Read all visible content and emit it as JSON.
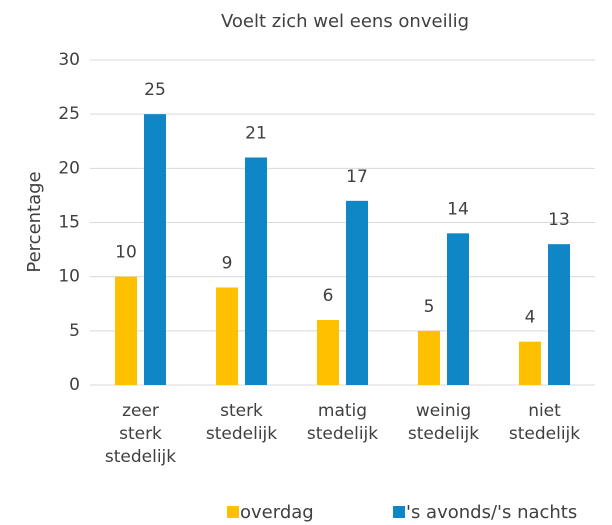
{
  "chart_data": {
    "type": "bar",
    "title": "Voelt zich wel eens onveilig",
    "ylabel": "Percentage",
    "categories": [
      "zeer sterk stedelijk",
      "sterk stedelijk",
      "matig stedelijk",
      "weinig stedelijk",
      "niet stedelijk"
    ],
    "series": [
      {
        "name": "overdag",
        "color": "#ffc000",
        "values": [
          10,
          9,
          6,
          5,
          4
        ]
      },
      {
        "name": "'s avonds/'s nachts",
        "color": "#0f86c6",
        "values": [
          25,
          21,
          17,
          14,
          13
        ]
      }
    ],
    "ylim": [
      0,
      30
    ],
    "yticks": [
      0,
      5,
      10,
      15,
      20,
      25,
      30
    ],
    "grid": true,
    "legend": "bottom"
  }
}
